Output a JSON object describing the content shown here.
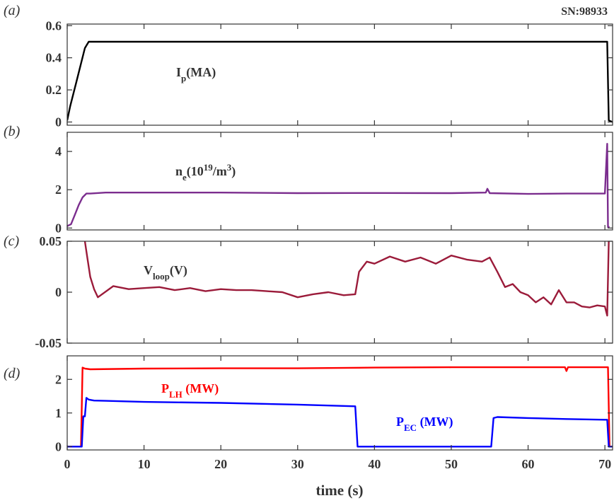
{
  "shot": "SN:98933",
  "panel_tags": [
    "(a)",
    "(b)",
    "(c)",
    "(d)"
  ],
  "x_axis_label": "time (s)",
  "x_ticks": [
    "0",
    "10",
    "20",
    "30",
    "40",
    "50",
    "60",
    "70"
  ],
  "annotations": {
    "ip": {
      "main": "I",
      "sub": "p",
      "tail": "(MA)"
    },
    "ne": {
      "main": "n",
      "sub": "e",
      "tail": "(10",
      "sup": "19",
      "tail2": "/m",
      "sup2": "3",
      "tail3": ")"
    },
    "vloop": {
      "main": "V",
      "sub": "loop",
      "tail": "(V)"
    },
    "plh": {
      "main": "P",
      "sub": "LH",
      "tail": " (MW)"
    },
    "pec": {
      "main": "P",
      "sub": "EC",
      "tail": " (MW)"
    }
  },
  "colors": {
    "ip": "#000000",
    "ne": "#7b2d8e",
    "vloop": "#9b1b3a",
    "plh": "#ff0000",
    "pec": "#0000ff",
    "axis": "#333333"
  },
  "chart_data": [
    {
      "type": "line",
      "panel": "(a)",
      "xlim": [
        0,
        71
      ],
      "ylim": [
        -0.02,
        0.61
      ],
      "y_ticks": [
        "0",
        "0.2",
        "0.4",
        "0.6"
      ],
      "y_tick_values": [
        0,
        0.2,
        0.4,
        0.6
      ],
      "series": [
        {
          "label_key": "ip",
          "x": [
            0,
            0.4,
            1.2,
            2.3,
            2.8,
            4,
            10,
            20,
            30,
            40,
            50,
            60,
            70,
            70.3,
            70.5,
            71
          ],
          "y": [
            0.01,
            0.1,
            0.25,
            0.46,
            0.5,
            0.5,
            0.5,
            0.5,
            0.5,
            0.5,
            0.5,
            0.5,
            0.5,
            0.5,
            0.01,
            0.0
          ]
        }
      ]
    },
    {
      "type": "line",
      "panel": "(b)",
      "xlim": [
        0,
        71
      ],
      "ylim": [
        -0.1,
        5.0
      ],
      "y_ticks": [
        "0",
        "2",
        "4"
      ],
      "y_tick_values": [
        0,
        2,
        4
      ],
      "series": [
        {
          "label_key": "ne",
          "x": [
            0,
            0.5,
            1.0,
            1.5,
            2.0,
            2.5,
            3,
            5,
            10,
            20,
            30,
            40,
            50,
            54.5,
            54.7,
            55,
            60,
            65,
            70,
            70.3,
            70.4,
            70.6
          ],
          "y": [
            0.1,
            0.2,
            0.7,
            1.2,
            1.6,
            1.8,
            1.8,
            1.85,
            1.85,
            1.85,
            1.82,
            1.83,
            1.82,
            1.85,
            2.05,
            1.82,
            1.78,
            1.8,
            1.8,
            4.4,
            0.05,
            0.05
          ]
        }
      ]
    },
    {
      "type": "line",
      "panel": "(c)",
      "xlim": [
        0,
        71
      ],
      "ylim": [
        -0.05,
        0.05
      ],
      "y_ticks": [
        "-0.05",
        "0",
        "0.05"
      ],
      "y_tick_values": [
        -0.05,
        0,
        0.05
      ],
      "series": [
        {
          "label_key": "vloop",
          "x": [
            2.3,
            2.6,
            3.0,
            3.5,
            4,
            6,
            8,
            10,
            12,
            14,
            16,
            18,
            20,
            22,
            24,
            26,
            28,
            30,
            32,
            34,
            36,
            37.5,
            38,
            39,
            40,
            42,
            44,
            46,
            48,
            50,
            52,
            54,
            55,
            56,
            57,
            58,
            59,
            60,
            61,
            62,
            63,
            64,
            65,
            66,
            67,
            68,
            69,
            70,
            70.3,
            70.5
          ],
          "y": [
            0.05,
            0.035,
            0.015,
            0.003,
            -0.005,
            0.006,
            0.003,
            0.004,
            0.005,
            0.002,
            0.004,
            0.001,
            0.003,
            0.002,
            0.002,
            0.001,
            0.0,
            -0.005,
            -0.002,
            0.0,
            -0.003,
            -0.002,
            0.02,
            0.03,
            0.028,
            0.035,
            0.03,
            0.034,
            0.028,
            0.036,
            0.032,
            0.03,
            0.034,
            0.02,
            0.005,
            0.008,
            0.0,
            -0.003,
            -0.01,
            -0.005,
            -0.012,
            0.002,
            -0.01,
            -0.01,
            -0.014,
            -0.015,
            -0.013,
            -0.014,
            -0.023,
            0.05
          ]
        }
      ]
    },
    {
      "type": "line",
      "panel": "(d)",
      "xlim": [
        0,
        71
      ],
      "ylim": [
        -0.1,
        2.7
      ],
      "y_ticks": [
        "0",
        "1",
        "2"
      ],
      "y_tick_values": [
        0,
        1,
        2
      ],
      "series": [
        {
          "label_key": "plh",
          "x": [
            0,
            1.8,
            2.0,
            2.3,
            3,
            10,
            20,
            30,
            40,
            50,
            60,
            64.8,
            65.0,
            65.2,
            70,
            70.4,
            70.6,
            71
          ],
          "y": [
            0,
            0,
            2.35,
            2.32,
            2.3,
            2.32,
            2.33,
            2.33,
            2.35,
            2.36,
            2.36,
            2.36,
            2.25,
            2.36,
            2.36,
            2.36,
            0,
            0
          ]
        },
        {
          "label_key": "pec",
          "x": [
            0,
            1.9,
            2.1,
            2.3,
            2.5,
            2.8,
            3.5,
            5,
            10,
            20,
            30,
            37.5,
            37.8,
            55.2,
            55.5,
            56,
            60,
            65,
            70,
            70.3,
            70.5,
            71
          ],
          "y": [
            0,
            0,
            0.9,
            0.9,
            1.45,
            1.4,
            1.37,
            1.36,
            1.33,
            1.3,
            1.25,
            1.2,
            0,
            0,
            0.85,
            0.88,
            0.85,
            0.82,
            0.8,
            0.8,
            0,
            0
          ]
        }
      ]
    }
  ]
}
